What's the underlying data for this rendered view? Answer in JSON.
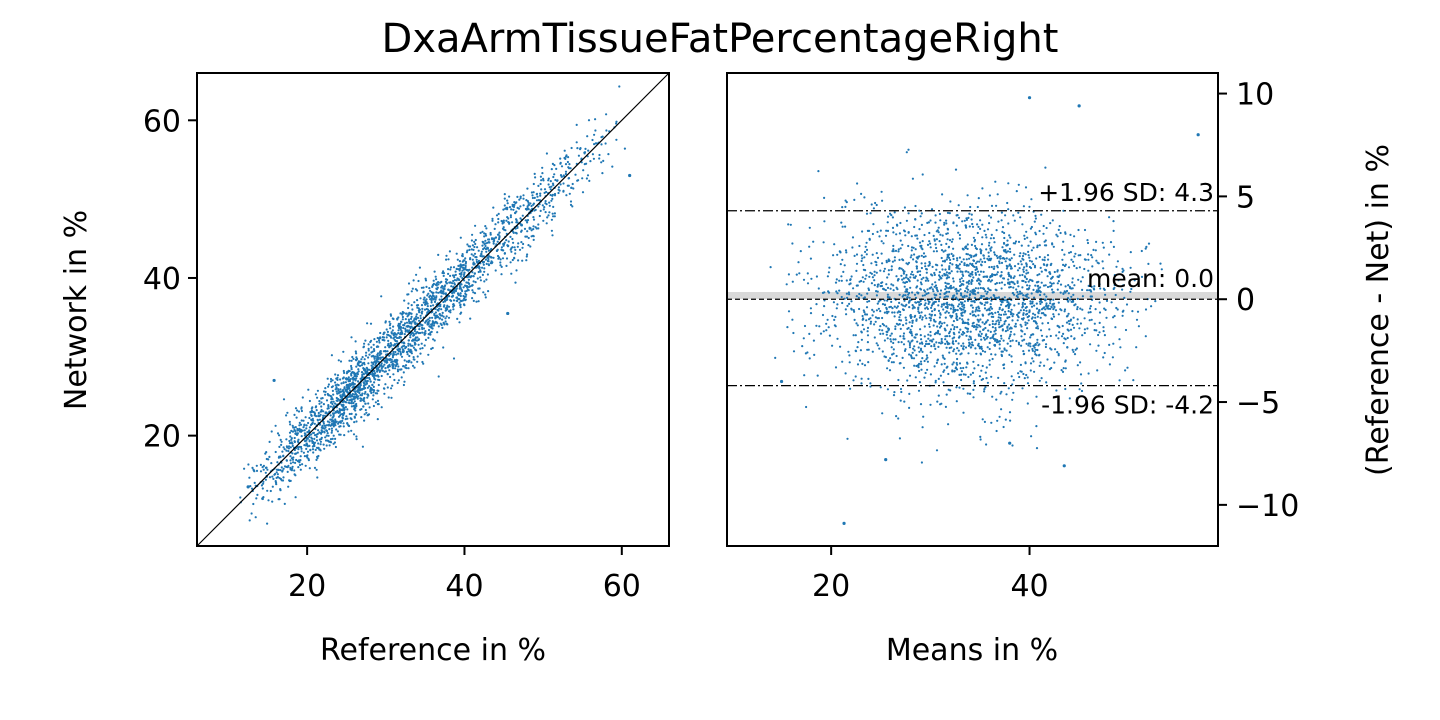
{
  "title": "DxaArmTissueFatPercentageRight",
  "point_color": "#1f77b4",
  "chart_data": [
    {
      "type": "scatter",
      "name": "scatter-plot",
      "xlabel": "Reference in %",
      "ylabel": "Network in %",
      "xlim": [
        6,
        66
      ],
      "ylim": [
        6,
        66
      ],
      "xticks": [
        20,
        40,
        60
      ],
      "yticks": [
        20,
        40,
        60
      ],
      "identity_line": true,
      "grid": false,
      "point_count": 2500,
      "point_model": {
        "x_range": [
          11,
          61
        ],
        "x_peak": 26,
        "residual_sd": 2.2
      },
      "outliers": [
        [
          15.8,
          27.0
        ],
        [
          61.0,
          53.0
        ],
        [
          45.5,
          35.5
        ],
        [
          12.5,
          13.5
        ]
      ]
    },
    {
      "type": "scatter",
      "name": "bland-altman-plot",
      "xlabel": "Means in %",
      "ylabel": "(Reference - Net) in %",
      "xlim": [
        9.5,
        59
      ],
      "ylim": [
        -12,
        11
      ],
      "xticks": [
        20,
        40
      ],
      "yticks": [
        10,
        5,
        0,
        -5,
        -10
      ],
      "y_axis_side": "right",
      "grid": false,
      "mean": 0.0,
      "upper_loa": 4.3,
      "lower_loa": -4.2,
      "mean_label": "mean: 0.0",
      "upper_label": "+1.96 SD: 4.3",
      "lower_label": "-1.96 SD: -4.2",
      "point_count": 2500,
      "point_model": {
        "x_range": [
          12,
          56
        ],
        "sd": 2.2
      },
      "outliers": [
        [
          40.0,
          9.8
        ],
        [
          45.0,
          9.4
        ],
        [
          21.3,
          -10.9
        ],
        [
          57.0,
          8.0
        ],
        [
          43.5,
          -8.1
        ],
        [
          25.5,
          -7.8
        ],
        [
          38.0,
          -7.0
        ],
        [
          15.0,
          -4.0
        ]
      ]
    }
  ]
}
